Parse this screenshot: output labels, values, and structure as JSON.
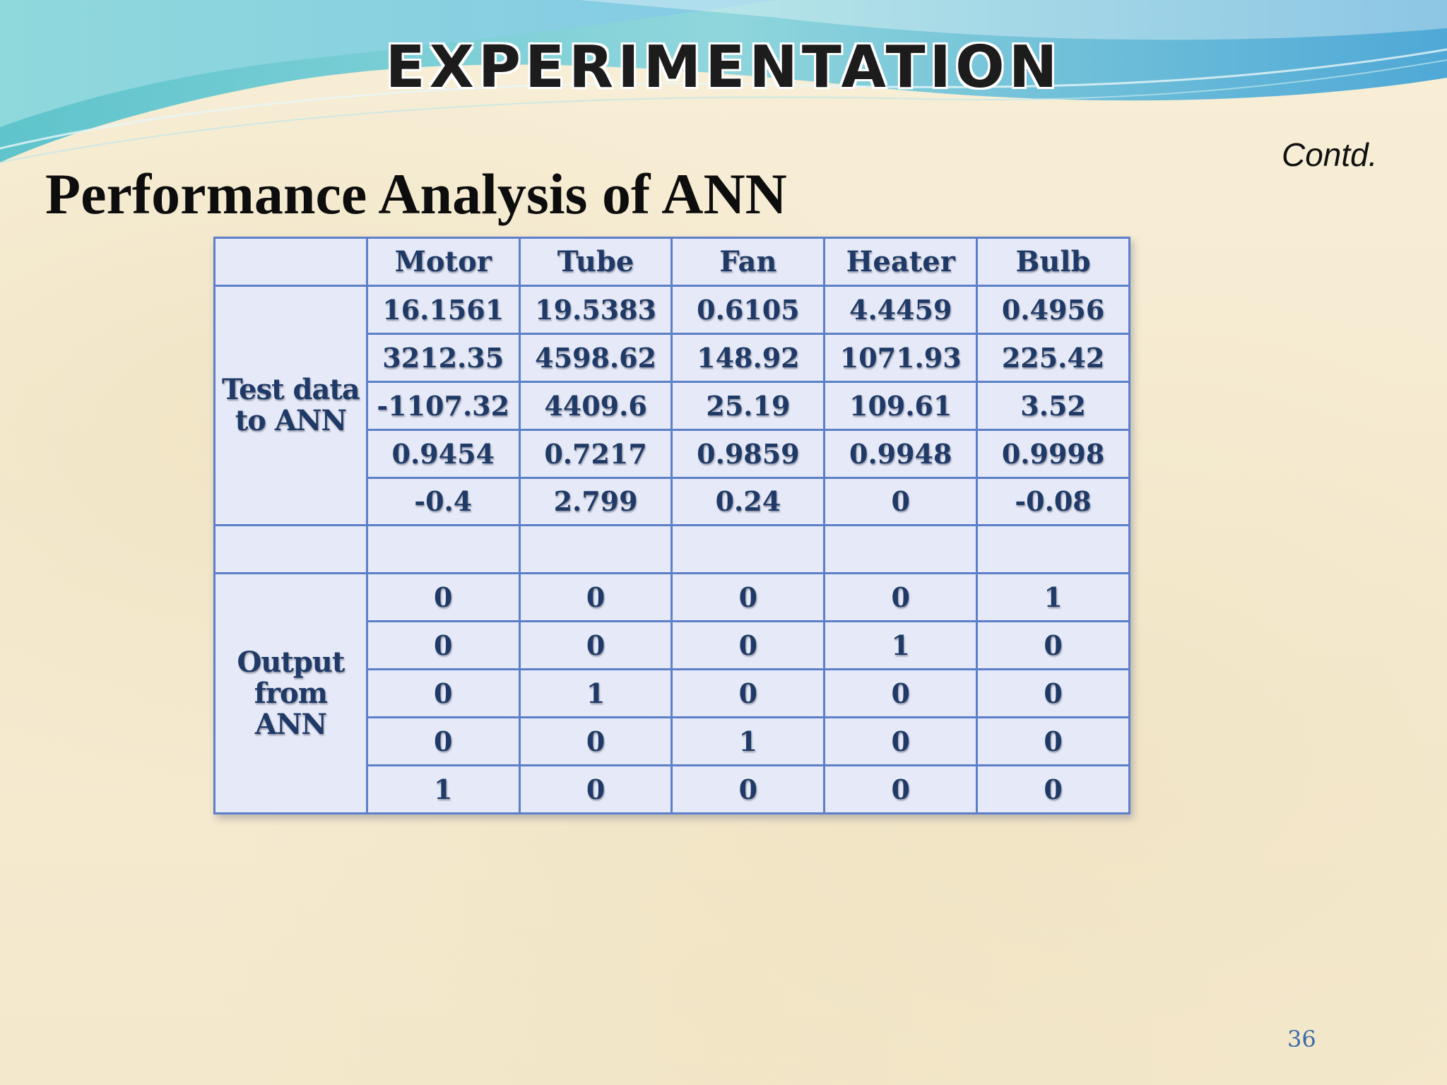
{
  "banner": {
    "title": "EXPERIMENTATION"
  },
  "contd": "Contd.",
  "title": "Performance Analysis of ANN",
  "table": {
    "columns": [
      "",
      "Motor",
      "Tube",
      "Fan",
      "Heater",
      "Bulb"
    ],
    "test_label": "Test data to ANN",
    "test_rows": [
      [
        "16.1561",
        "19.5383",
        "0.6105",
        "4.4459",
        "0.4956"
      ],
      [
        "3212.35",
        "4598.62",
        "148.92",
        "1071.93",
        "225.42"
      ],
      [
        "-1107.32",
        "4409.6",
        "25.19",
        "109.61",
        "3.52"
      ],
      [
        "0.9454",
        "0.7217",
        "0.9859",
        "0.9948",
        "0.9998"
      ],
      [
        "-0.4",
        "2.799",
        "0.24",
        "0",
        "-0.08"
      ]
    ],
    "output_label": "Output from ANN",
    "output_rows": [
      [
        "0",
        "0",
        "0",
        "0",
        "1"
      ],
      [
        "0",
        "0",
        "0",
        "1",
        "0"
      ],
      [
        "0",
        "1",
        "0",
        "0",
        "0"
      ],
      [
        "0",
        "0",
        "1",
        "0",
        "0"
      ],
      [
        "1",
        "0",
        "0",
        "0",
        "0"
      ]
    ]
  },
  "page_number": "36"
}
